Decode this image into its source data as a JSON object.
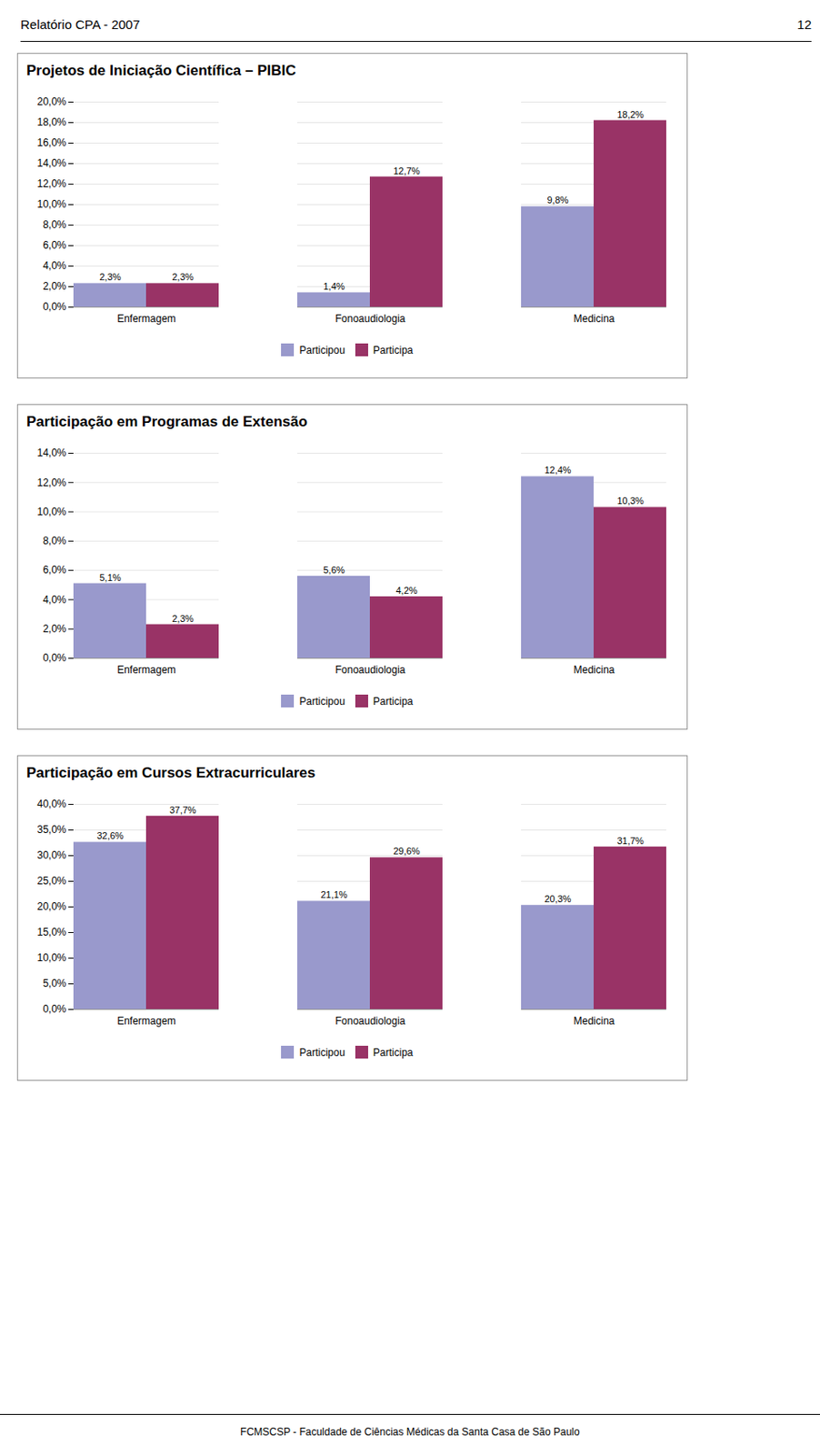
{
  "annotations": [
    "Relatório CPA - 2007",
    "12",
    "FCMSCSP - Faculdade de Ciências Médicas da Santa Casa de São Paulo"
  ],
  "chart_data": [
    {
      "type": "bar",
      "title": "Projetos de Iniciação Científica – PIBIC",
      "categories": [
        "Enfermagem",
        "Fonoaudiologia",
        "Medicina"
      ],
      "series": [
        {
          "name": "Participou",
          "color": "#9999CC",
          "values": [
            2.3,
            1.4,
            9.8
          ],
          "value_labels": [
            "2,3%",
            "1,4%",
            "9,8%"
          ]
        },
        {
          "name": "Participa",
          "color": "#993366",
          "values": [
            2.3,
            12.7,
            18.2
          ],
          "value_labels": [
            "2,3%",
            "12,7%",
            "18,2%"
          ]
        }
      ],
      "ylim": [
        0,
        20
      ],
      "yticks": [
        {
          "value": 0,
          "label": "0,0%"
        },
        {
          "value": 2,
          "label": "2,0%"
        },
        {
          "value": 4,
          "label": "4,0%"
        },
        {
          "value": 6,
          "label": "6,0%"
        },
        {
          "value": 8,
          "label": "8,0%"
        },
        {
          "value": 10,
          "label": "10,0%"
        },
        {
          "value": 12,
          "label": "12,0%"
        },
        {
          "value": 14,
          "label": "14,0%"
        },
        {
          "value": 16,
          "label": "16,0%"
        },
        {
          "value": 18,
          "label": "18,0%"
        },
        {
          "value": 20,
          "label": "20,0%"
        }
      ],
      "grid": true,
      "data_labels": true,
      "legend": "bottom"
    },
    {
      "type": "bar",
      "title": "Participação em Programas de Extensão",
      "categories": [
        "Enfermagem",
        "Fonoaudiologia",
        "Medicina"
      ],
      "series": [
        {
          "name": "Participou",
          "color": "#9999CC",
          "values": [
            5.1,
            5.6,
            12.4
          ],
          "value_labels": [
            "5,1%",
            "5,6%",
            "12,4%"
          ]
        },
        {
          "name": "Participa",
          "color": "#993366",
          "values": [
            2.3,
            4.2,
            10.3
          ],
          "value_labels": [
            "2,3%",
            "4,2%",
            "10,3%"
          ]
        }
      ],
      "ylim": [
        0,
        14
      ],
      "yticks": [
        {
          "value": 0,
          "label": "0,0%"
        },
        {
          "value": 2,
          "label": "2,0%"
        },
        {
          "value": 4,
          "label": "4,0%"
        },
        {
          "value": 6,
          "label": "6,0%"
        },
        {
          "value": 8,
          "label": "8,0%"
        },
        {
          "value": 10,
          "label": "10,0%"
        },
        {
          "value": 12,
          "label": "12,0%"
        },
        {
          "value": 14,
          "label": "14,0%"
        }
      ],
      "grid": true,
      "data_labels": true,
      "legend": "bottom"
    },
    {
      "type": "bar",
      "title": "Participação em Cursos Extracurriculares",
      "categories": [
        "Enfermagem",
        "Fonoaudiologia",
        "Medicina"
      ],
      "series": [
        {
          "name": "Participou",
          "color": "#9999CC",
          "values": [
            32.6,
            21.1,
            20.3
          ],
          "value_labels": [
            "32,6%",
            "21,1%",
            "20,3%"
          ]
        },
        {
          "name": "Participa",
          "color": "#993366",
          "values": [
            37.7,
            29.6,
            31.7
          ],
          "value_labels": [
            "37,7%",
            "29,6%",
            "31,7%"
          ]
        }
      ],
      "ylim": [
        0,
        40
      ],
      "yticks": [
        {
          "value": 0,
          "label": "0,0%"
        },
        {
          "value": 5,
          "label": "5,0%"
        },
        {
          "value": 10,
          "label": "10,0%"
        },
        {
          "value": 15,
          "label": "15,0%"
        },
        {
          "value": 20,
          "label": "20,0%"
        },
        {
          "value": 25,
          "label": "25,0%"
        },
        {
          "value": 30,
          "label": "30,0%"
        },
        {
          "value": 35,
          "label": "35,0%"
        },
        {
          "value": 40,
          "label": "40,0%"
        }
      ],
      "grid": true,
      "data_labels": true,
      "legend": "bottom"
    }
  ]
}
